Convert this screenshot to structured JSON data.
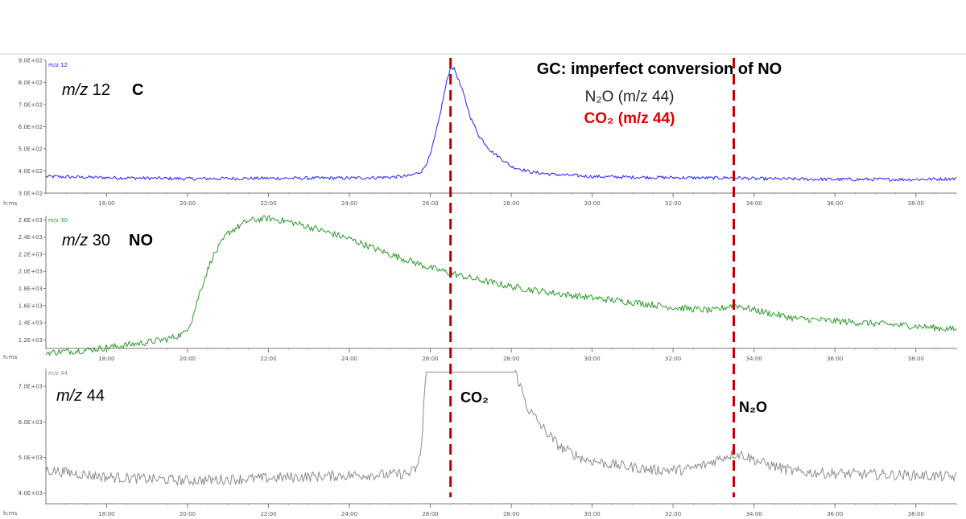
{
  "title": "GC: imperfect conversion of NO",
  "legend": [
    {
      "label": "N₂O (m/z 44)",
      "color": "#222222",
      "bold": false
    },
    {
      "label": "CO₂ (m/z 44)",
      "color": "#e00000",
      "bold": true
    }
  ],
  "time_axis_label": "h:ms",
  "markers": [
    {
      "x": 26.5,
      "color": "#c00000"
    },
    {
      "x": 33.5,
      "color": "#c00000"
    }
  ],
  "chart_data": [
    {
      "type": "line",
      "series_tag": "m/z 12",
      "panel_label": "m/z 12",
      "species": "C",
      "color": "#2020ff",
      "xlim": [
        16.5,
        39.0
      ],
      "ylim": [
        300,
        900
      ],
      "yticks": [
        300,
        400,
        500,
        600,
        700,
        800,
        900
      ],
      "ytick_labels": [
        "3.0E+02",
        "4.0E+02",
        "5.0E+02",
        "6.0E+02",
        "7.0E+02",
        "8.0E+02",
        "9.0E+02"
      ],
      "xticks": [
        18,
        20,
        22,
        24,
        26,
        28,
        30,
        32,
        34,
        36,
        38
      ],
      "xtick_labels": [
        "18:00",
        "20:00",
        "22:00",
        "24:00",
        "26:00",
        "28:00",
        "30:00",
        "32:00",
        "34:00",
        "36:00",
        "38:00"
      ],
      "x": [
        16.5,
        18,
        20,
        22,
        24,
        25,
        25.5,
        25.8,
        26.0,
        26.2,
        26.4,
        26.5,
        26.6,
        26.8,
        27.0,
        27.2,
        27.5,
        27.8,
        28.0,
        28.5,
        29.0,
        30,
        31,
        32,
        33,
        33.5,
        34,
        36,
        38,
        39
      ],
      "y": [
        375,
        370,
        365,
        367,
        368,
        372,
        378,
        400,
        470,
        620,
        800,
        870,
        860,
        760,
        640,
        560,
        490,
        450,
        420,
        395,
        385,
        375,
        372,
        370,
        368,
        370,
        365,
        362,
        362,
        365
      ]
    },
    {
      "type": "line",
      "series_tag": "m/z 30",
      "panel_label": "m/z 30",
      "species": "NO",
      "color": "#2a9a2a",
      "xlim": [
        16.5,
        39.0
      ],
      "ylim": [
        1100,
        2650
      ],
      "yticks": [
        1200,
        1400,
        1600,
        1800,
        2000,
        2200,
        2400,
        2600
      ],
      "ytick_labels": [
        "1.2E+03",
        "1.4E+03",
        "1.6E+03",
        "1.8E+03",
        "2.0E+03",
        "2.2E+03",
        "2.4E+03",
        "2.6E+03"
      ],
      "xticks": [
        18,
        20,
        22,
        24,
        26,
        28,
        30,
        32,
        34,
        36,
        38
      ],
      "xtick_labels": [
        "18:00",
        "20:00",
        "22:00",
        "24:00",
        "26:00",
        "28:00",
        "30:00",
        "32:00",
        "34:00",
        "36:00",
        "38:00"
      ],
      "x": [
        16.5,
        17.5,
        18,
        19,
        19.5,
        19.9,
        20.1,
        20.3,
        20.6,
        21.0,
        21.5,
        22.0,
        22.5,
        23,
        24,
        25,
        26,
        26.5,
        27,
        28,
        29,
        30,
        31,
        32,
        33,
        33.5,
        34,
        35,
        36,
        37,
        38,
        39
      ],
      "y": [
        1050,
        1080,
        1110,
        1170,
        1210,
        1270,
        1420,
        1750,
        2150,
        2450,
        2590,
        2620,
        2580,
        2520,
        2380,
        2200,
        2040,
        1980,
        1920,
        1820,
        1750,
        1690,
        1640,
        1580,
        1540,
        1610,
        1550,
        1450,
        1420,
        1390,
        1360,
        1320
      ]
    },
    {
      "type": "line",
      "series_tag": "m/z 44",
      "panel_label": "m/z 44",
      "species_labels": [
        "CO₂",
        "N₂O"
      ],
      "color": "#8c8c8c",
      "xlim": [
        16.5,
        39.0
      ],
      "ylim": [
        3700,
        7500
      ],
      "yticks": [
        4000,
        5000,
        6000,
        7000
      ],
      "ytick_labels": [
        "4.0E+03",
        "5.0E+03",
        "6.0E+03",
        "7.0E+03"
      ],
      "xticks": [
        18,
        20,
        22,
        24,
        26,
        28,
        30,
        32,
        34,
        36,
        38
      ],
      "xtick_labels": [
        "18:00",
        "20:00",
        "22:00",
        "24:00",
        "26:00",
        "28:00",
        "30:00",
        "32:00",
        "34:00",
        "36:00",
        "38:00"
      ],
      "x": [
        16.5,
        18,
        20,
        22,
        24,
        25,
        25.5,
        25.7,
        25.8,
        25.85,
        25.9,
        28.1,
        28.2,
        28.4,
        28.8,
        29.2,
        29.8,
        30.5,
        31.5,
        32.3,
        32.8,
        33.2,
        33.5,
        33.7,
        34.2,
        35,
        36,
        37,
        38,
        39
      ],
      "y": [
        4650,
        4450,
        4350,
        4420,
        4500,
        4520,
        4550,
        4750,
        5500,
        6800,
        7400,
        7400,
        7100,
        6400,
        5800,
        5300,
        4950,
        4800,
        4650,
        4650,
        4800,
        5000,
        5100,
        5080,
        4850,
        4600,
        4550,
        4520,
        4500,
        4450
      ]
    }
  ]
}
